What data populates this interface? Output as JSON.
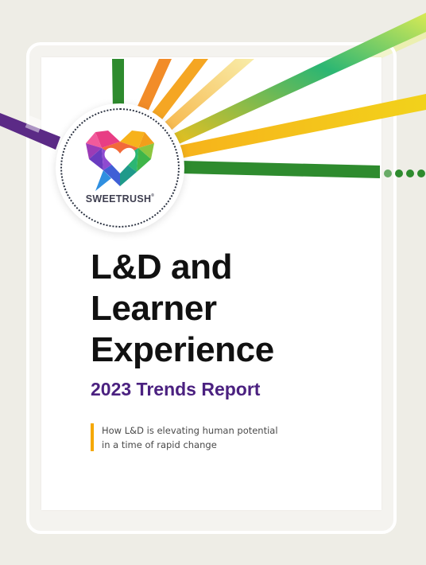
{
  "brand": {
    "name": "SWEETRUSH",
    "trademark": "®"
  },
  "title_lines": [
    "L&D and",
    "Learner",
    "Experience"
  ],
  "subtitle": "2023 Trends Report",
  "tagline_lines": [
    "How L&D is elevating human potential",
    "in a time of rapid change"
  ],
  "colors": {
    "subtitle": "#4b2180",
    "accent_bar": "#f5a800",
    "rays": [
      "#2e8b2e",
      "#f28c28",
      "#f5a623",
      "#f7e36a",
      "#2bb673",
      "#f2d21b",
      "#2e8b2e",
      "#5b2a86"
    ]
  }
}
